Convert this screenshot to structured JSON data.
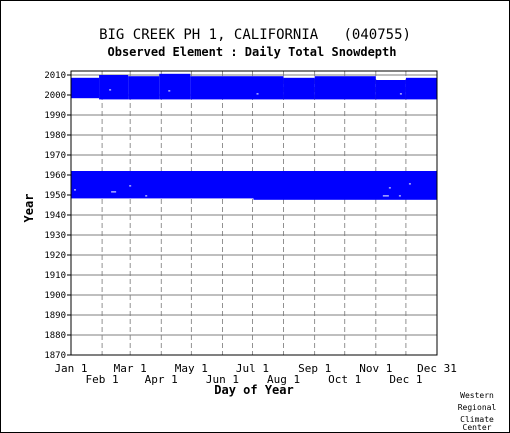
{
  "chart_data": {
    "type": "heatmap",
    "title": "BIG CREEK PH 1, CALIFORNIA   (040755)",
    "subtitle": "Observed Element : Daily Total Snowdepth",
    "xlabel": "Day of Year",
    "ylabel": "Year",
    "ylim": [
      1870,
      2012
    ],
    "xlim": [
      1,
      366
    ],
    "yticks": [
      1870,
      1880,
      1890,
      1900,
      1910,
      1920,
      1930,
      1940,
      1950,
      1960,
      1970,
      1980,
      1990,
      2000,
      2010
    ],
    "xticks_top_row": [
      {
        "label": "Jan 1",
        "day": 1
      },
      {
        "label": "Mar 1",
        "day": 60
      },
      {
        "label": "May 1",
        "day": 121
      },
      {
        "label": "Jul 1",
        "day": 182
      },
      {
        "label": "Sep 1",
        "day": 244
      },
      {
        "label": "Nov 1",
        "day": 305
      },
      {
        "label": "Dec 31",
        "day": 366
      }
    ],
    "xticks_bottom_row": [
      {
        "label": "Feb 1",
        "day": 32
      },
      {
        "label": "Apr 1",
        "day": 91
      },
      {
        "label": "Jun 1",
        "day": 152
      },
      {
        "label": "Aug 1",
        "day": 213
      },
      {
        "label": "Oct 1",
        "day": 274
      },
      {
        "label": "Dec 1",
        "day": 335
      }
    ],
    "grid": true,
    "data_color": "#0000ff",
    "bands": [
      {
        "name": "1948-1962",
        "segments": [
          {
            "x0": 1,
            "x1": 183,
            "y0": 1948.3,
            "y1": 1962
          },
          {
            "x0": 183,
            "x1": 366,
            "y0": 1947.6,
            "y1": 1962
          }
        ]
      },
      {
        "name": "1998-2010",
        "segments": [
          {
            "x0": 1,
            "x1": 29,
            "y0": 1998.4,
            "y1": 2008.6
          },
          {
            "x0": 29,
            "x1": 58,
            "y0": 1997.8,
            "y1": 2010
          },
          {
            "x0": 58,
            "x1": 89,
            "y0": 1997.8,
            "y1": 2009.4
          },
          {
            "x0": 89,
            "x1": 120,
            "y0": 1997.8,
            "y1": 2010.6
          },
          {
            "x0": 120,
            "x1": 213,
            "y0": 1997.8,
            "y1": 2009.4
          },
          {
            "x0": 213,
            "x1": 244,
            "y0": 1997.8,
            "y1": 2008.6
          },
          {
            "x0": 244,
            "x1": 305,
            "y0": 1997.8,
            "y1": 2009.4
          },
          {
            "x0": 305,
            "x1": 335,
            "y0": 1997.8,
            "y1": 2007.5
          },
          {
            "x0": 335,
            "x1": 366,
            "y0": 1997.8,
            "y1": 2008.6
          }
        ]
      }
    ],
    "gaps": [
      {
        "x0": 41,
        "x1": 46,
        "y0": 1951.3,
        "y1": 1951.8
      },
      {
        "x0": 59,
        "x1": 61,
        "y0": 1954.3,
        "y1": 1954.8
      },
      {
        "x0": 75,
        "x1": 77,
        "y0": 1949.3,
        "y1": 1949.8
      },
      {
        "x0": 312,
        "x1": 318,
        "y0": 1949.3,
        "y1": 1949.8
      },
      {
        "x0": 318,
        "x1": 320,
        "y0": 1953.3,
        "y1": 1953.8
      },
      {
        "x0": 328,
        "x1": 330,
        "y0": 1949.3,
        "y1": 1949.8
      },
      {
        "x0": 338,
        "x1": 340,
        "y0": 1955.3,
        "y1": 1955.8
      },
      {
        "x0": 4,
        "x1": 6,
        "y0": 1952.3,
        "y1": 1952.8
      },
      {
        "x0": 39,
        "x1": 41,
        "y0": 2002.3,
        "y1": 2002.8
      },
      {
        "x0": 98,
        "x1": 100,
        "y0": 2001.8,
        "y1": 2002.3
      },
      {
        "x0": 186,
        "x1": 188,
        "y0": 2000.3,
        "y1": 2000.8
      },
      {
        "x0": 329,
        "x1": 331,
        "y0": 2000.3,
        "y1": 2000.8
      }
    ]
  },
  "credit": {
    "line1": "Western",
    "line2": "Regional",
    "line3": "Climate",
    "line4": "Center"
  }
}
